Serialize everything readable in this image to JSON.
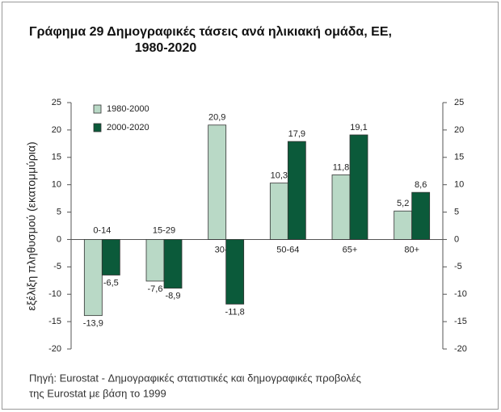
{
  "chart_data": {
    "type": "bar",
    "title": [
      "Γράφημα 29 Δημογραφικές τάσεις ανά ηλικιακή ομάδα, ΕΕ,",
      "1980-2020"
    ],
    "ylabel": "εξέλιξη πληθυσμού (εκατομμύρια)",
    "categories": [
      "0-14",
      "15-29",
      "30-49",
      "50-64",
      "65+",
      "80+"
    ],
    "series": [
      {
        "name": "1980-2000",
        "color": "#b9d9c6",
        "values": [
          -13.9,
          -7.6,
          20.9,
          10.3,
          11.8,
          5.2
        ],
        "value_labels": [
          "-13,9",
          "-7,6",
          "20,9",
          "10,3",
          "11,8",
          "5,2"
        ]
      },
      {
        "name": "2000-2020",
        "color": "#0b5a3a",
        "values": [
          -6.5,
          -8.9,
          -11.8,
          17.9,
          19.1,
          8.6
        ],
        "value_labels": [
          "-6,5",
          "-8,9",
          "-11,8",
          "17,9",
          "19,1",
          "8,6"
        ]
      }
    ],
    "ylim": [
      -20,
      25
    ],
    "yticks": [
      -20,
      -15,
      -10,
      -5,
      0,
      5,
      10,
      15,
      20,
      25
    ],
    "y2lim": [
      -20,
      25
    ],
    "y2ticks": [
      -20,
      -15,
      -10,
      -5,
      0,
      5,
      10,
      15,
      20,
      25
    ],
    "legend": "upper left",
    "source": [
      "Πηγή: Eurostat - Δημογραφικές στατιστικές και δημογραφικές προβολές",
      "της Eurostat με βάση το 1999"
    ]
  }
}
